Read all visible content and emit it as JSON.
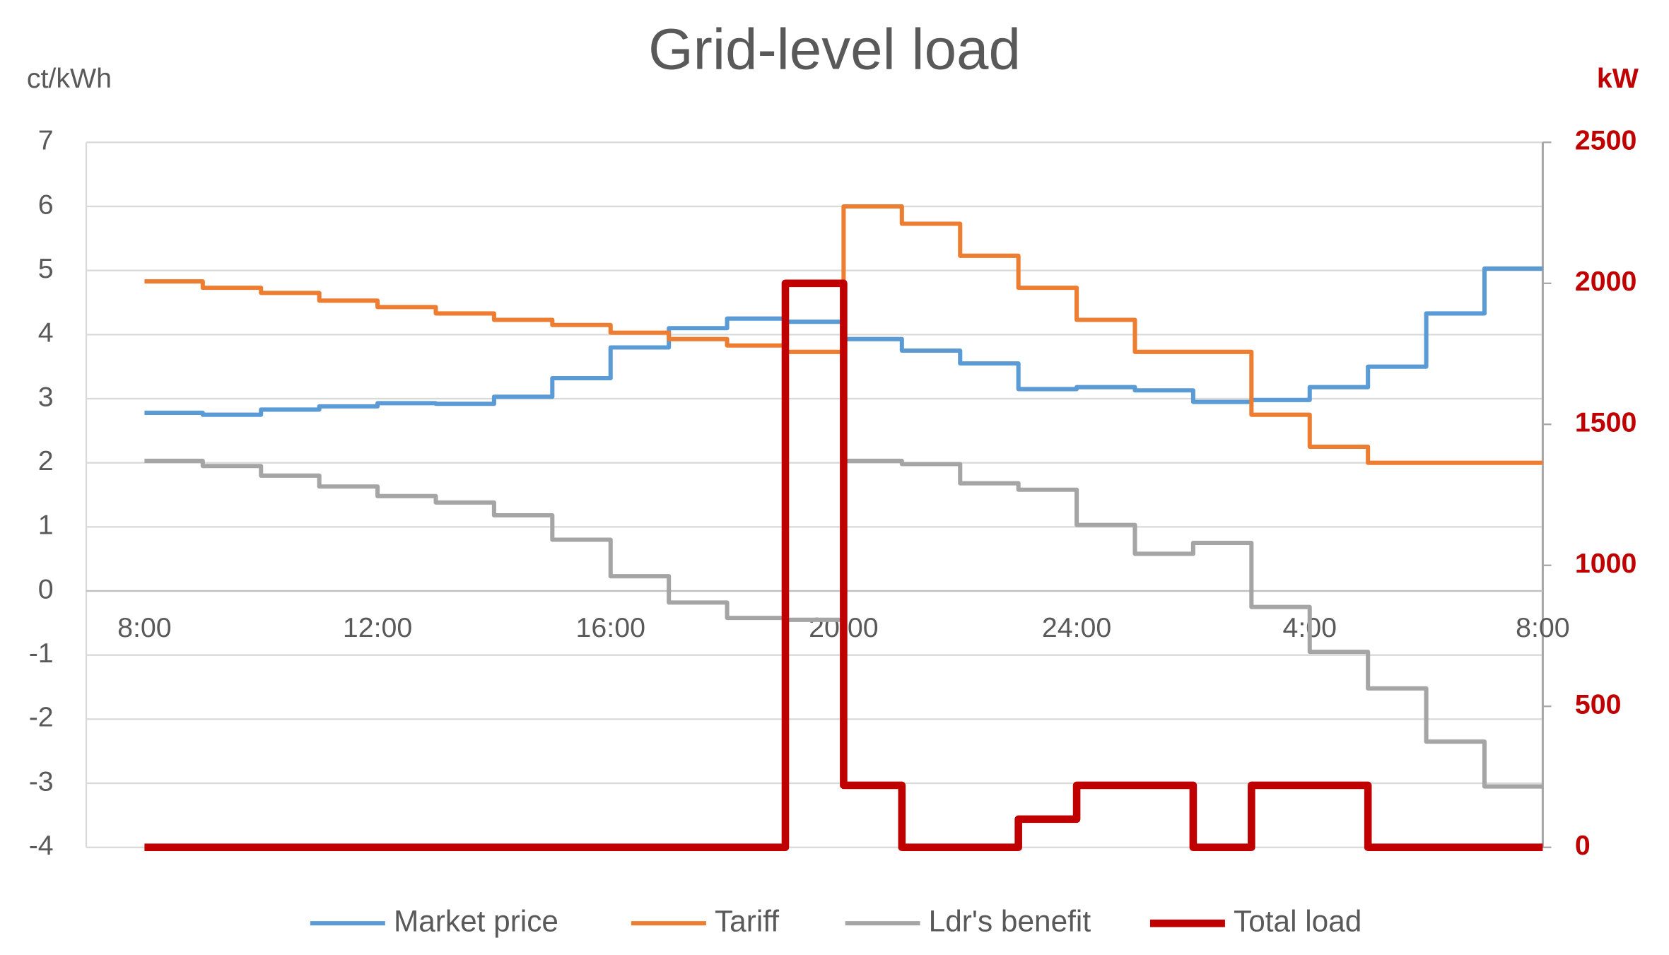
{
  "chart_data": {
    "type": "line",
    "step": "post",
    "title": "Grid-level load",
    "y_label": "ct/kWh",
    "y2_label": "kW",
    "x": [
      8,
      9,
      10,
      11,
      12,
      13,
      14,
      15,
      16,
      17,
      18,
      19,
      20,
      21,
      22,
      23,
      24,
      25,
      26,
      27,
      28,
      29,
      30,
      31
    ],
    "xlim": [
      7,
      32
    ],
    "xticks": [
      {
        "value": 8,
        "label": "8:00"
      },
      {
        "value": 12,
        "label": "12:00"
      },
      {
        "value": 16,
        "label": "16:00"
      },
      {
        "value": 20,
        "label": "20:00"
      },
      {
        "value": 24,
        "label": "24:00"
      },
      {
        "value": 28,
        "label": "4:00"
      },
      {
        "value": 32,
        "label": "8:00"
      }
    ],
    "ylim": [
      -4,
      7
    ],
    "yticks": [
      -4,
      -3,
      -2,
      -1,
      0,
      1,
      2,
      3,
      4,
      5,
      6,
      7
    ],
    "y2lim": [
      0,
      2500
    ],
    "y2ticks": [
      0,
      500,
      1000,
      1500,
      2000,
      2500
    ],
    "grid": true,
    "legend": "bottom",
    "series": [
      {
        "name": "Market price",
        "color": "#5b9bd5",
        "values": [
          2.78,
          2.75,
          2.83,
          2.88,
          2.93,
          2.92,
          3.03,
          3.32,
          3.8,
          4.1,
          4.25,
          4.2,
          3.93,
          3.75,
          3.55,
          3.15,
          3.18,
          3.13,
          2.95,
          2.98,
          3.18,
          3.5,
          4.33,
          5.03
        ]
      },
      {
        "name": "Tariff",
        "color": "#ed7d31",
        "values": [
          4.83,
          4.73,
          4.65,
          4.53,
          4.43,
          4.33,
          4.23,
          4.15,
          4.03,
          3.93,
          3.83,
          3.73,
          6.0,
          5.73,
          5.23,
          4.73,
          4.23,
          3.73,
          3.73,
          2.75,
          2.25,
          2.0,
          2.0,
          2.0
        ]
      },
      {
        "name": "Ldr's benefit",
        "color": "#a5a5a5",
        "values": [
          2.03,
          1.95,
          1.8,
          1.63,
          1.48,
          1.38,
          1.18,
          0.8,
          0.23,
          -0.18,
          -0.42,
          -0.45,
          2.03,
          1.98,
          1.68,
          1.58,
          1.03,
          0.58,
          0.75,
          -0.25,
          -0.95,
          -1.52,
          -2.35,
          -3.05
        ]
      },
      {
        "name": "Total load",
        "color": "#c00000",
        "axis": "y2",
        "values": [
          0,
          0,
          0,
          0,
          0,
          0,
          0,
          0,
          0,
          0,
          0,
          2000,
          220,
          0,
          0,
          100,
          220,
          220,
          0,
          220,
          220,
          0,
          0,
          0
        ]
      }
    ]
  }
}
